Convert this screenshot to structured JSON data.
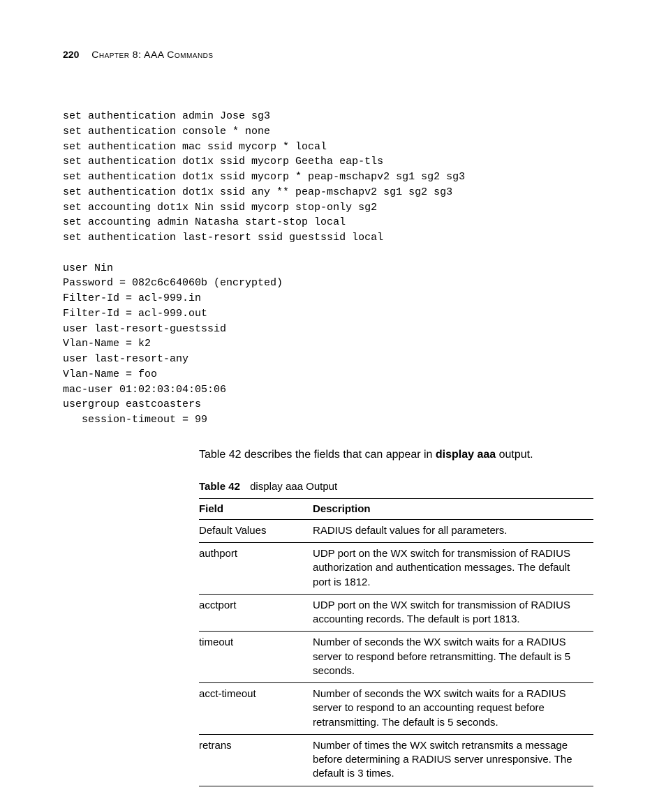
{
  "header": {
    "page_number": "220",
    "chapter_label": "Chapter 8: AAA Commands"
  },
  "code_block": "set authentication admin Jose sg3\nset authentication console * none\nset authentication mac ssid mycorp * local\nset authentication dot1x ssid mycorp Geetha eap-tls\nset authentication dot1x ssid mycorp * peap-mschapv2 sg1 sg2 sg3\nset authentication dot1x ssid any ** peap-mschapv2 sg1 sg2 sg3\nset accounting dot1x Nin ssid mycorp stop-only sg2\nset accounting admin Natasha start-stop local\nset authentication last-resort ssid guestssid local\n\nuser Nin\nPassword = 082c6c64060b (encrypted)\nFilter-Id = acl-999.in\nFilter-Id = acl-999.out\nuser last-resort-guestssid\nVlan-Name = k2\nuser last-resort-any\nVlan-Name = foo\nmac-user 01:02:03:04:05:06\nusergroup eastcoasters\n   session-timeout = 99",
  "paragraph": {
    "pre": "Table 42 describes the fields that can appear in ",
    "bold": "display aaa",
    "post": " output."
  },
  "table_caption": {
    "bold": "Table 42",
    "plain": "display aaa Output"
  },
  "table": {
    "columns": [
      "Field",
      "Description"
    ],
    "rows": [
      [
        "Default Values",
        "RADIUS default values for all parameters."
      ],
      [
        "authport",
        "UDP port on the WX switch for transmission of RADIUS authorization and authentication messages. The default port is 1812."
      ],
      [
        "acctport",
        "UDP port on the WX switch for transmission of RADIUS accounting records. The default is port 1813."
      ],
      [
        "timeout",
        "Number of seconds the WX switch waits for a RADIUS server to respond before retransmitting. The default is 5 seconds."
      ],
      [
        "acct-timeout",
        "Number of seconds the WX switch waits for a RADIUS server to respond to an accounting request before retransmitting. The default is 5 seconds."
      ],
      [
        "retrans",
        "Number of times the WX switch retransmits a message before determining a RADIUS server unresponsive. The default is 3 times."
      ]
    ]
  }
}
